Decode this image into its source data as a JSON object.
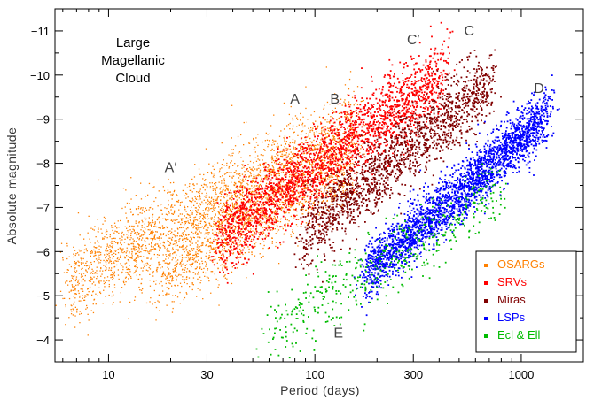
{
  "chart_data": {
    "type": "scatter",
    "title_lines": [
      "Large",
      "Magellanic",
      "Cloud"
    ],
    "xlabel": "Period (days)",
    "ylabel": "Absolute magnitude",
    "x_scale": "log",
    "xlim": [
      5.5,
      2000
    ],
    "ylim": [
      -3.5,
      -11.5
    ],
    "x_ticks": [
      {
        "value": 10,
        "label": "10"
      },
      {
        "value": 30,
        "label": "30"
      },
      {
        "value": 100,
        "label": "100"
      },
      {
        "value": 300,
        "label": "300"
      },
      {
        "value": 1000,
        "label": "1000"
      }
    ],
    "y_ticks": [
      {
        "value": -4,
        "label": "−4"
      },
      {
        "value": -5,
        "label": "−5"
      },
      {
        "value": -6,
        "label": "−6"
      },
      {
        "value": -7,
        "label": "−7"
      },
      {
        "value": -8,
        "label": "−8"
      },
      {
        "value": -9,
        "label": "−9"
      },
      {
        "value": -10,
        "label": "−10"
      },
      {
        "value": -11,
        "label": "−11"
      }
    ],
    "grid": false,
    "legend_position": "bottom-right",
    "series": [
      {
        "name": "OSARGs",
        "color": "#ff8000",
        "bands": [
          {
            "logx_start": 0.8,
            "logx_end": 2.2,
            "mag_start": -5.3,
            "slope": -2.5,
            "spread": 0.48,
            "count": 2600
          },
          {
            "logx_start": 1.25,
            "logx_end": 2.2,
            "mag_start": -5.4,
            "slope": -2.7,
            "spread": 0.42,
            "count": 1400
          }
        ]
      },
      {
        "name": "SRVs",
        "color": "#ff0000",
        "bands": [
          {
            "logx_start": 1.55,
            "logx_end": 2.62,
            "mag_start": -6.3,
            "slope": -3.5,
            "spread": 0.42,
            "count": 2200
          }
        ]
      },
      {
        "name": "Miras",
        "color": "#800000",
        "bands": [
          {
            "logx_start": 1.95,
            "logx_end": 2.85,
            "mag_start": -6.4,
            "slope": -3.8,
            "spread": 0.42,
            "count": 1600
          }
        ]
      },
      {
        "name": "LSPs",
        "color": "#0000ff",
        "bands": [
          {
            "logx_start": 2.25,
            "logx_end": 3.12,
            "mag_start": -5.5,
            "slope": -4.1,
            "spread": 0.32,
            "count": 2600
          }
        ]
      },
      {
        "name": "Ecl & Ell",
        "color": "#00bb00",
        "bands": [
          {
            "logx_start": 1.75,
            "logx_end": 2.9,
            "mag_start": -4.0,
            "slope": -2.9,
            "spread": 0.42,
            "count": 480
          }
        ]
      }
    ],
    "annotations": [
      {
        "text": "A′",
        "x": 20,
        "y": -7.8
      },
      {
        "text": "A",
        "x": 80,
        "y": -9.35
      },
      {
        "text": "B",
        "x": 125,
        "y": -9.35
      },
      {
        "text": "C′",
        "x": 300,
        "y": -10.7
      },
      {
        "text": "C",
        "x": 560,
        "y": -10.9
      },
      {
        "text": "D",
        "x": 1220,
        "y": -9.6
      },
      {
        "text": "E",
        "x": 130,
        "y": -4.05
      }
    ]
  }
}
